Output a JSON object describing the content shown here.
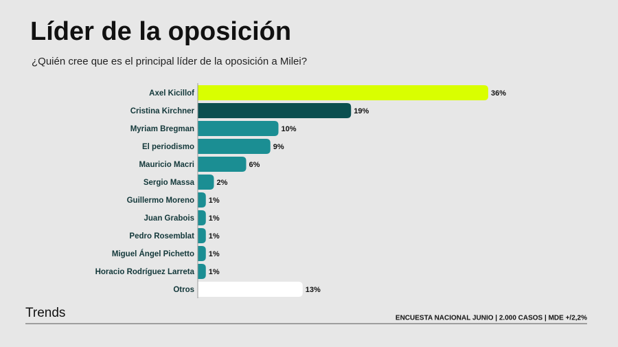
{
  "chart_data": {
    "type": "bar",
    "orientation": "horizontal",
    "title": "Líder de la oposición",
    "subtitle": "¿Quién cree que es el principal líder de la oposición a Milei?",
    "categories": [
      "Axel Kicillof",
      "Cristina Kirchner",
      "Myriam Bregman",
      "El periodismo",
      "Mauricio Macri",
      "Sergio Massa",
      "Guillermo Moreno",
      "Juan Grabois",
      "Pedro Rosemblat",
      "Miguel Ángel Pichetto",
      "Horacio Rodríguez Larreta",
      "Otros"
    ],
    "values": [
      36,
      19,
      10,
      9,
      6,
      2,
      1,
      1,
      1,
      1,
      1,
      13
    ],
    "value_labels": [
      "36%",
      "19%",
      "10%",
      "9%",
      "6%",
      "2%",
      "1%",
      "1%",
      "1%",
      "1%",
      "1%",
      "13%"
    ],
    "colors": [
      "#d9ff00",
      "#0b4f50",
      "#1b8e93",
      "#1b8e93",
      "#1b8e93",
      "#1b8e93",
      "#1b8e93",
      "#1b8e93",
      "#1b8e93",
      "#1b8e93",
      "#1b8e93",
      "#ffffff"
    ]
  },
  "footer": {
    "brand": "Trends",
    "note": "ENCUESTA NACIONAL JUNIO | 2.000 CASOS | MDE +/2,2%"
  }
}
